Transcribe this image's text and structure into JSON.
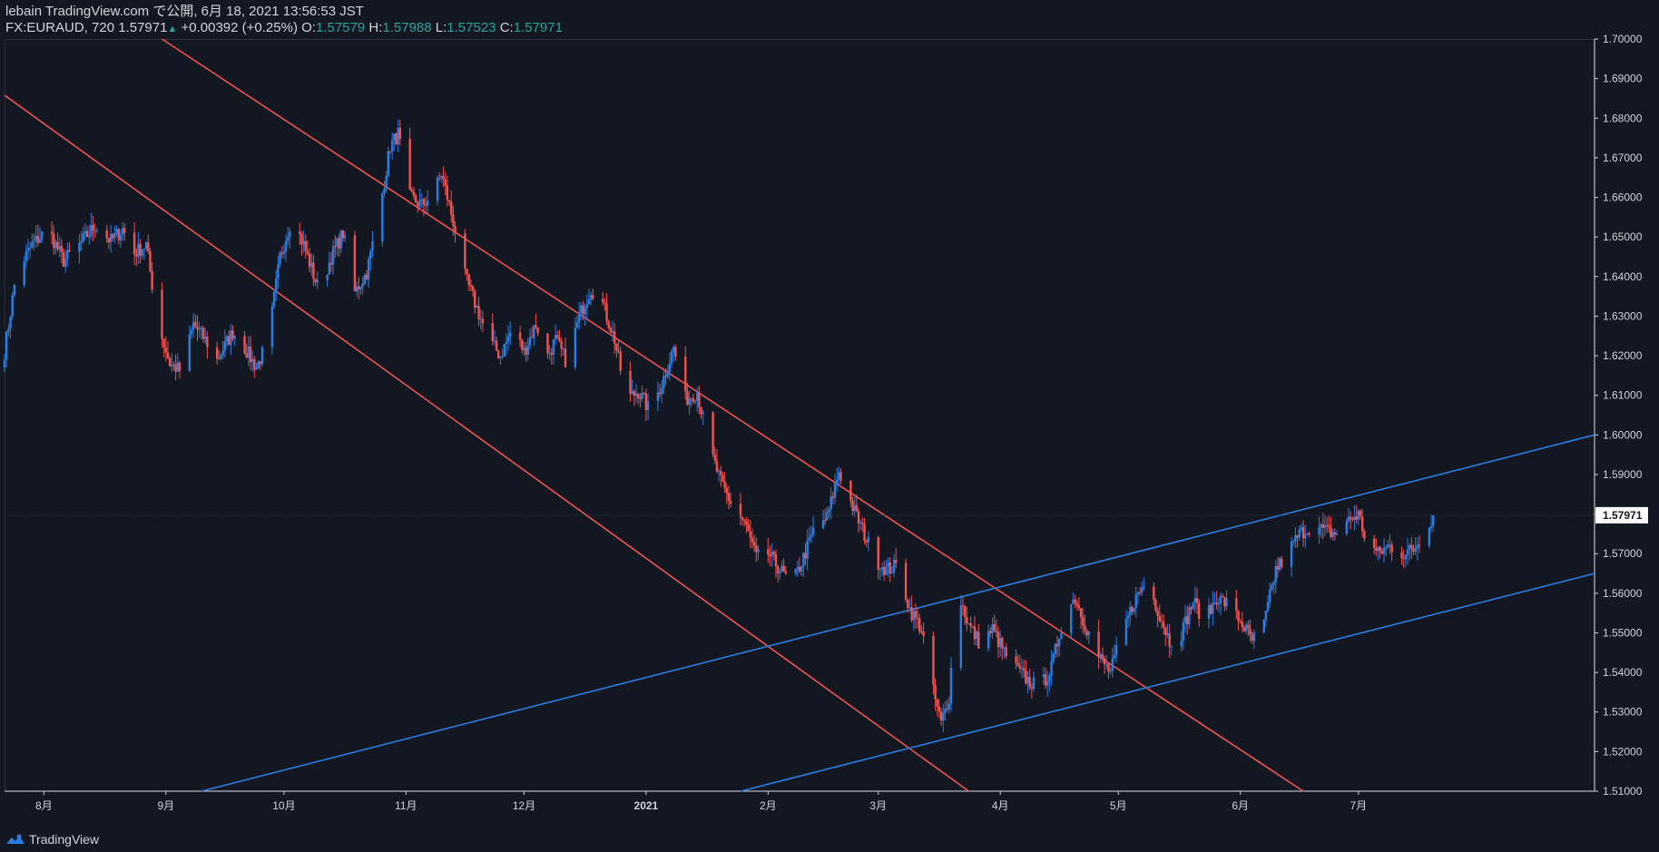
{
  "header": {
    "line1": "lebain TradingView.com で公開, 6月 18, 2021 13:56:53 JST",
    "symbol": "FX:EURAUD, 720",
    "last": "1.57971",
    "change": "+0.00392 (+0.25%)",
    "o_label": "O:",
    "o_value": "1.57579",
    "h_label": "H:",
    "h_value": "1.57988",
    "l_label": "L:",
    "l_value": "1.57523",
    "c_label": "C:",
    "c_value": "1.57971"
  },
  "footer": {
    "brand": "TradingView",
    "logo_icon": "tradingview-logo-icon"
  },
  "colors": {
    "background": "#131722",
    "up": "#2a7de1",
    "down": "#f05350",
    "red_channel": "#f05350",
    "blue_channel": "#2a7de1",
    "axis_text": "#d1d4dc",
    "price_label_bg": "#ffffff"
  },
  "chart_data": {
    "type": "candlestick",
    "symbol": "FX:EURAUD",
    "interval": "720",
    "ylim": [
      1.51,
      1.7
    ],
    "y_ticks": [
      "1.70000",
      "1.69000",
      "1.68000",
      "1.67000",
      "1.66000",
      "1.65000",
      "1.64000",
      "1.63000",
      "1.62000",
      "1.61000",
      "1.60000",
      "1.59000",
      "1.58000",
      "1.57000",
      "1.56000",
      "1.55000",
      "1.54000",
      "1.53000",
      "1.52000",
      "1.51000"
    ],
    "x_ticks": [
      "8月",
      "9月",
      "10月",
      "11月",
      "12月",
      "2021",
      "2月",
      "3月",
      "4月",
      "5月",
      "6月",
      "7月"
    ],
    "x_tick_dates": [
      "2020-08-01",
      "2020-09-01",
      "2020-10-01",
      "2020-11-01",
      "2020-12-01",
      "2021-01-01",
      "2021-02-01",
      "2021-03-01",
      "2021-04-01",
      "2021-05-01",
      "2021-06-01",
      "2021-07-01"
    ],
    "x_range": [
      "2020-07-22",
      "2021-08-30"
    ],
    "last_price": "1.57971",
    "price_path": [
      [
        "2020-07-22",
        1.621
      ],
      [
        "2020-07-25",
        1.641
      ],
      [
        "2020-07-29",
        1.648
      ],
      [
        "2020-08-02",
        1.652
      ],
      [
        "2020-08-06",
        1.644
      ],
      [
        "2020-08-10",
        1.648
      ],
      [
        "2020-08-14",
        1.653
      ],
      [
        "2020-08-18",
        1.649
      ],
      [
        "2020-08-21",
        1.652
      ],
      [
        "2020-08-24",
        1.646
      ],
      [
        "2020-08-27",
        1.648
      ],
      [
        "2020-08-30",
        1.628
      ],
      [
        "2020-09-02",
        1.618
      ],
      [
        "2020-09-05",
        1.616
      ],
      [
        "2020-09-08",
        1.628
      ],
      [
        "2020-09-11",
        1.624
      ],
      [
        "2020-09-14",
        1.619
      ],
      [
        "2020-09-18",
        1.626
      ],
      [
        "2020-09-21",
        1.622
      ],
      [
        "2020-09-24",
        1.617
      ],
      [
        "2020-09-27",
        1.624
      ],
      [
        "2020-09-30",
        1.645
      ],
      [
        "2020-10-03",
        1.655
      ],
      [
        "2020-10-06",
        1.648
      ],
      [
        "2020-10-10",
        1.636
      ],
      [
        "2020-10-13",
        1.645
      ],
      [
        "2020-10-16",
        1.651
      ],
      [
        "2020-10-19",
        1.636
      ],
      [
        "2020-10-22",
        1.641
      ],
      [
        "2020-10-25",
        1.655
      ],
      [
        "2020-10-28",
        1.673
      ],
      [
        "2020-10-30",
        1.676
      ],
      [
        "2020-11-02",
        1.66
      ],
      [
        "2020-11-05",
        1.658
      ],
      [
        "2020-11-08",
        1.661
      ],
      [
        "2020-11-10",
        1.666
      ],
      [
        "2020-11-13",
        1.654
      ],
      [
        "2020-11-16",
        1.64
      ],
      [
        "2020-11-19",
        1.632
      ],
      [
        "2020-11-22",
        1.624
      ],
      [
        "2020-11-25",
        1.62
      ],
      [
        "2020-11-28",
        1.627
      ],
      [
        "2020-12-01",
        1.621
      ],
      [
        "2020-12-04",
        1.628
      ],
      [
        "2020-12-07",
        1.62
      ],
      [
        "2020-12-09",
        1.624
      ],
      [
        "2020-12-12",
        1.618
      ],
      [
        "2020-12-15",
        1.63
      ],
      [
        "2020-12-18",
        1.637
      ],
      [
        "2020-12-21",
        1.633
      ],
      [
        "2020-12-24",
        1.624
      ],
      [
        "2020-12-27",
        1.609
      ],
      [
        "2020-12-30",
        1.611
      ],
      [
        "2021-01-02",
        1.606
      ],
      [
        "2021-01-05",
        1.613
      ],
      [
        "2021-01-08",
        1.622
      ],
      [
        "2021-01-11",
        1.609
      ],
      [
        "2021-01-14",
        1.611
      ],
      [
        "2021-01-17",
        1.597
      ],
      [
        "2021-01-20",
        1.588
      ],
      [
        "2021-01-23",
        1.582
      ],
      [
        "2021-01-26",
        1.578
      ],
      [
        "2021-01-29",
        1.569
      ],
      [
        "2021-02-01",
        1.57
      ],
      [
        "2021-02-04",
        1.566
      ],
      [
        "2021-02-07",
        1.562
      ],
      [
        "2021-02-10",
        1.569
      ],
      [
        "2021-02-13",
        1.577
      ],
      [
        "2021-02-16",
        1.579
      ],
      [
        "2021-02-19",
        1.591
      ],
      [
        "2021-02-22",
        1.583
      ],
      [
        "2021-02-25",
        1.576
      ],
      [
        "2021-02-28",
        1.569
      ],
      [
        "2021-03-03",
        1.566
      ],
      [
        "2021-03-06",
        1.567
      ],
      [
        "2021-03-09",
        1.556
      ],
      [
        "2021-03-12",
        1.551
      ],
      [
        "2021-03-15",
        1.535
      ],
      [
        "2021-03-17",
        1.527
      ],
      [
        "2021-03-19",
        1.534
      ],
      [
        "2021-03-21",
        1.561
      ],
      [
        "2021-03-24",
        1.552
      ],
      [
        "2021-03-27",
        1.547
      ],
      [
        "2021-03-30",
        1.551
      ],
      [
        "2021-04-02",
        1.545
      ],
      [
        "2021-04-05",
        1.541
      ],
      [
        "2021-04-08",
        1.538
      ],
      [
        "2021-04-11",
        1.536
      ],
      [
        "2021-04-14",
        1.541
      ],
      [
        "2021-04-17",
        1.554
      ],
      [
        "2021-04-20",
        1.559
      ],
      [
        "2021-04-23",
        1.551
      ],
      [
        "2021-04-26",
        1.544
      ],
      [
        "2021-04-29",
        1.54
      ],
      [
        "2021-05-02",
        1.55
      ],
      [
        "2021-05-05",
        1.558
      ],
      [
        "2021-05-08",
        1.563
      ],
      [
        "2021-05-11",
        1.556
      ],
      [
        "2021-05-14",
        1.548
      ],
      [
        "2021-05-17",
        1.55
      ],
      [
        "2021-05-20",
        1.558
      ],
      [
        "2021-05-23",
        1.553
      ],
      [
        "2021-05-26",
        1.559
      ],
      [
        "2021-05-29",
        1.557
      ],
      [
        "2021-06-01",
        1.553
      ],
      [
        "2021-06-04",
        1.548
      ],
      [
        "2021-06-07",
        1.552
      ],
      [
        "2021-06-10",
        1.566
      ],
      [
        "2021-06-13",
        1.57
      ],
      [
        "2021-06-16",
        1.575
      ],
      [
        "2021-06-19",
        1.577
      ],
      [
        "2021-06-22",
        1.576
      ],
      [
        "2021-06-25",
        1.575
      ],
      [
        "2021-06-28",
        1.578
      ],
      [
        "2021-07-01",
        1.58
      ],
      [
        "2021-07-03",
        1.573
      ],
      [
        "2021-07-06",
        1.57
      ],
      [
        "2021-07-09",
        1.572
      ],
      [
        "2021-07-12",
        1.57
      ],
      [
        "2021-07-15",
        1.571
      ],
      [
        "2021-07-18",
        1.576
      ],
      [
        "2021-07-20",
        1.57971
      ]
    ],
    "trend_lines": [
      {
        "color": "red",
        "from": [
          "2020-07-22",
          1.6858
        ],
        "to": [
          "2021-03-24",
          1.51
        ]
      },
      {
        "color": "red",
        "from": [
          "2020-08-31",
          1.7
        ],
        "to": [
          "2021-06-17",
          1.51
        ]
      },
      {
        "color": "blue",
        "from": [
          "2020-09-10",
          1.51
        ],
        "to": [
          "2021-08-30",
          1.6
        ]
      },
      {
        "color": "blue",
        "from": [
          "2021-01-25",
          1.51
        ],
        "to": [
          "2021-08-30",
          1.565
        ]
      }
    ]
  }
}
